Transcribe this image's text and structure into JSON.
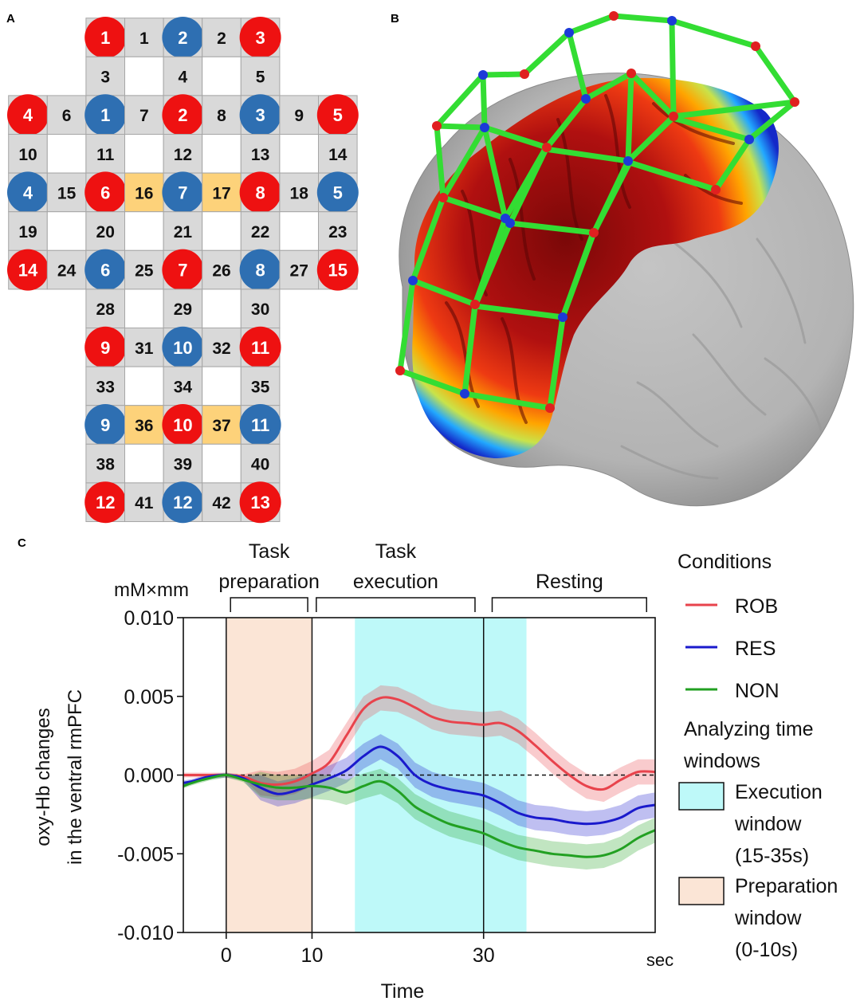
{
  "panels": {
    "a": {
      "letter": "A"
    },
    "b": {
      "letter": "B"
    },
    "c": {
      "letter": "C"
    }
  },
  "optode_grid": {
    "rows": [
      [
        {
          "k": "s",
          "v": "1"
        },
        {
          "k": "c",
          "v": "1"
        },
        {
          "k": "d",
          "v": "2"
        },
        {
          "k": "c",
          "v": "2"
        },
        {
          "k": "s",
          "v": "3"
        }
      ],
      [
        {
          "k": "c",
          "v": "3"
        },
        {
          "k": "e"
        },
        {
          "k": "c",
          "v": "4"
        },
        {
          "k": "e"
        },
        {
          "k": "c",
          "v": "5"
        }
      ],
      [
        {
          "k": "s",
          "v": "4"
        },
        {
          "k": "c",
          "v": "6"
        },
        {
          "k": "d",
          "v": "1"
        },
        {
          "k": "c",
          "v": "7"
        },
        {
          "k": "s",
          "v": "2"
        },
        {
          "k": "c",
          "v": "8"
        },
        {
          "k": "d",
          "v": "3"
        },
        {
          "k": "c",
          "v": "9"
        },
        {
          "k": "s",
          "v": "5"
        }
      ],
      [
        {
          "k": "c",
          "v": "10"
        },
        {
          "k": "e"
        },
        {
          "k": "c",
          "v": "11"
        },
        {
          "k": "e"
        },
        {
          "k": "c",
          "v": "12"
        },
        {
          "k": "e"
        },
        {
          "k": "c",
          "v": "13"
        },
        {
          "k": "e"
        },
        {
          "k": "c",
          "v": "14"
        }
      ],
      [
        {
          "k": "d",
          "v": "4"
        },
        {
          "k": "c",
          "v": "15"
        },
        {
          "k": "s",
          "v": "6"
        },
        {
          "k": "h",
          "v": "16"
        },
        {
          "k": "d",
          "v": "7"
        },
        {
          "k": "h",
          "v": "17"
        },
        {
          "k": "s",
          "v": "8"
        },
        {
          "k": "c",
          "v": "18"
        },
        {
          "k": "d",
          "v": "5"
        }
      ],
      [
        {
          "k": "c",
          "v": "19"
        },
        {
          "k": "e"
        },
        {
          "k": "c",
          "v": "20"
        },
        {
          "k": "e"
        },
        {
          "k": "c",
          "v": "21"
        },
        {
          "k": "e"
        },
        {
          "k": "c",
          "v": "22"
        },
        {
          "k": "e"
        },
        {
          "k": "c",
          "v": "23"
        }
      ],
      [
        {
          "k": "s",
          "v": "14"
        },
        {
          "k": "c",
          "v": "24"
        },
        {
          "k": "d",
          "v": "6"
        },
        {
          "k": "c",
          "v": "25"
        },
        {
          "k": "s",
          "v": "7"
        },
        {
          "k": "c",
          "v": "26"
        },
        {
          "k": "d",
          "v": "8"
        },
        {
          "k": "c",
          "v": "27"
        },
        {
          "k": "s",
          "v": "15"
        }
      ],
      [
        {
          "k": "c",
          "v": "28"
        },
        {
          "k": "e"
        },
        {
          "k": "c",
          "v": "29"
        },
        {
          "k": "e"
        },
        {
          "k": "c",
          "v": "30"
        }
      ],
      [
        {
          "k": "s",
          "v": "9"
        },
        {
          "k": "c",
          "v": "31"
        },
        {
          "k": "d",
          "v": "10"
        },
        {
          "k": "c",
          "v": "32"
        },
        {
          "k": "s",
          "v": "11"
        }
      ],
      [
        {
          "k": "c",
          "v": "33"
        },
        {
          "k": "e"
        },
        {
          "k": "c",
          "v": "34"
        },
        {
          "k": "e"
        },
        {
          "k": "c",
          "v": "35"
        }
      ],
      [
        {
          "k": "d",
          "v": "9"
        },
        {
          "k": "h",
          "v": "36"
        },
        {
          "k": "s",
          "v": "10"
        },
        {
          "k": "h",
          "v": "37"
        },
        {
          "k": "d",
          "v": "11"
        }
      ],
      [
        {
          "k": "c",
          "v": "38"
        },
        {
          "k": "e"
        },
        {
          "k": "c",
          "v": "39"
        },
        {
          "k": "e"
        },
        {
          "k": "c",
          "v": "40"
        }
      ],
      [
        {
          "k": "s",
          "v": "12"
        },
        {
          "k": "c",
          "v": "41"
        },
        {
          "k": "d",
          "v": "12"
        },
        {
          "k": "c",
          "v": "42"
        },
        {
          "k": "s",
          "v": "13"
        }
      ]
    ],
    "colors": {
      "source": "#ee1111",
      "detector": "#2e6fb2",
      "channel_cell": "#d9d9d9",
      "highlight_cell": "#fdd27a",
      "cell_border": "#a6a6a6"
    }
  },
  "brain": {
    "colors": {
      "cortex": "#b9b9b9",
      "activation_high": "#8b0a0a",
      "activation_mid": "#ff8c00",
      "activation_low": "#1e3cff",
      "probe_lines": "#33dd33"
    }
  },
  "chart_data": {
    "type": "line",
    "title": "",
    "xlabel": "Time",
    "ylabel_lines": [
      "oxy-Hb changes",
      "in the ventral rmPFC"
    ],
    "unit_label": "mM×mm",
    "x_unit": "sec",
    "xlim": [
      -5,
      50
    ],
    "ylim": [
      -0.01,
      0.01
    ],
    "y_ticks": [
      {
        "value": 0.01,
        "label": "0.010"
      },
      {
        "value": 0.005,
        "label": "0.005"
      },
      {
        "value": 0.0,
        "label": "0.000"
      },
      {
        "value": -0.005,
        "label": "-0.005"
      },
      {
        "value": -0.01,
        "label": "-0.010"
      }
    ],
    "x_ticks": [
      {
        "value": 0,
        "label": "0"
      },
      {
        "value": 10,
        "label": "10"
      },
      {
        "value": 30,
        "label": "30"
      }
    ],
    "vlines": [
      0,
      10,
      30
    ],
    "zero_line": "dashed",
    "phases": [
      {
        "lines": [
          "Task",
          "preparation"
        ],
        "from": 0.5,
        "to": 9.5
      },
      {
        "lines": [
          "Task",
          "execution"
        ],
        "from": 10.5,
        "to": 29
      },
      {
        "lines": [
          "Resting"
        ],
        "from": 31,
        "to": 49
      }
    ],
    "windows": [
      {
        "from": 15,
        "to": 35,
        "color": "#bef9f9"
      },
      {
        "from": 0,
        "to": 10,
        "color": "#fbe5d6"
      }
    ],
    "series": [
      {
        "name": "ROB",
        "color": "#e8434c",
        "band": 0.0008,
        "x": [
          -5,
          -4,
          -2,
          0,
          2,
          4,
          6,
          8,
          10,
          12,
          14,
          16,
          18,
          20,
          22,
          24,
          26,
          28,
          30,
          32,
          34,
          36,
          38,
          40,
          42,
          44,
          46,
          48,
          50
        ],
        "y": [
          0,
          0,
          0,
          0,
          -0.0001,
          -0.0005,
          -0.0006,
          -0.0004,
          0.0001,
          0.0008,
          0.0025,
          0.0042,
          0.0049,
          0.0048,
          0.0043,
          0.0037,
          0.0034,
          0.0033,
          0.0032,
          0.0033,
          0.0028,
          0.0019,
          0.0009,
          0,
          -0.0007,
          -0.0009,
          -0.0003,
          0.0002,
          0.0002
        ]
      },
      {
        "name": "RES",
        "color": "#1a1acc",
        "band": 0.0008,
        "x": [
          -5,
          -4,
          -2,
          0,
          2,
          4,
          6,
          8,
          10,
          12,
          14,
          16,
          18,
          20,
          22,
          24,
          26,
          28,
          30,
          32,
          34,
          36,
          38,
          40,
          42,
          44,
          46,
          48,
          50
        ],
        "y": [
          -0.0005,
          -0.0004,
          -0.0001,
          0,
          -0.0002,
          -0.0008,
          -0.0012,
          -0.001,
          -0.0006,
          -0.0002,
          0.0003,
          0.0012,
          0.0018,
          0.0012,
          0,
          -0.0006,
          -0.0009,
          -0.0011,
          -0.0013,
          -0.0018,
          -0.0024,
          -0.0027,
          -0.0028,
          -0.003,
          -0.0031,
          -0.003,
          -0.0027,
          -0.0021,
          -0.0019
        ]
      },
      {
        "name": "NON",
        "color": "#22a022",
        "band": 0.0008,
        "x": [
          -5,
          -4,
          -2,
          0,
          2,
          4,
          6,
          8,
          10,
          12,
          14,
          16,
          18,
          20,
          22,
          24,
          26,
          28,
          30,
          32,
          34,
          36,
          38,
          40,
          42,
          44,
          46,
          48,
          50
        ],
        "y": [
          -0.0007,
          -0.0005,
          -0.0002,
          0,
          -0.0003,
          -0.0006,
          -0.0008,
          -0.0008,
          -0.0007,
          -0.0008,
          -0.0011,
          -0.0007,
          -0.0004,
          -0.001,
          -0.002,
          -0.0026,
          -0.0031,
          -0.0034,
          -0.0037,
          -0.0042,
          -0.0046,
          -0.0048,
          -0.005,
          -0.0051,
          -0.0052,
          -0.0051,
          -0.0047,
          -0.004,
          -0.0035
        ]
      }
    ],
    "legend": {
      "title": "Conditions",
      "windows_title_lines": [
        "Analyzing time",
        "windows"
      ],
      "execution_lines": [
        "Execution",
        "window",
        "(15-35s)"
      ],
      "preparation_lines": [
        "Preparation",
        "window",
        "(0-10s)"
      ]
    }
  }
}
